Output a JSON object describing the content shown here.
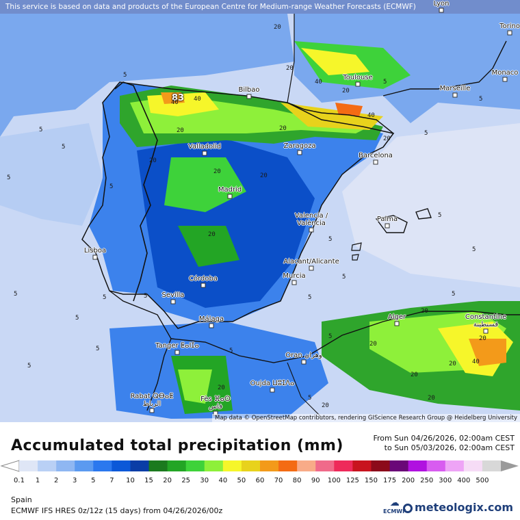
{
  "map": {
    "notice": "This service is based on data and products of the European Centre for Medium-range Weather Forecasts (ECMWF)",
    "attribution": "Map data © OpenStreetMap contributors, rendering GIScience Research Group @ Heidelberg University",
    "max_value": "83",
    "cities": [
      {
        "name": "Lyon",
        "key": "lyon"
      },
      {
        "name": "Torino",
        "key": "torino"
      },
      {
        "name": "Monaco",
        "key": "monaco"
      },
      {
        "name": "Marseille",
        "key": "marseille"
      },
      {
        "name": "Toulouse",
        "key": "toulouse"
      },
      {
        "name": "Bilbao",
        "key": "bilbao"
      },
      {
        "name": "Valladolid",
        "key": "valladolid"
      },
      {
        "name": "Zaragoza",
        "key": "zaragoza"
      },
      {
        "name": "Barcelona",
        "key": "barcelona"
      },
      {
        "name": "Madrid",
        "key": "madrid"
      },
      {
        "name": "Valencia /\nValència",
        "key": "valencia"
      },
      {
        "name": "Palma",
        "key": "palma"
      },
      {
        "name": "Lisboa",
        "key": "lisboa"
      },
      {
        "name": "Alacant/Alicante",
        "key": "alicante"
      },
      {
        "name": "Murcia",
        "key": "murcia"
      },
      {
        "name": "Córdoba",
        "key": "cordoba"
      },
      {
        "name": "Sevilla",
        "key": "sevilla"
      },
      {
        "name": "Málaga",
        "key": "malaga"
      },
      {
        "name": "Alger",
        "key": "alger"
      },
      {
        "name": "Constantine\nقسنطينة",
        "key": "constantine"
      },
      {
        "name": "Tanger ⵟⴰⵏⵊⴰ",
        "key": "tanger"
      },
      {
        "name": "Oran وهران",
        "key": "oran"
      },
      {
        "name": "Oujda ⵡⵓⵊⴷⴰ",
        "key": "oujda"
      },
      {
        "name": "Rabat ⵕⴱⴰⵟ\nالرباط",
        "key": "rabat"
      },
      {
        "name": "Fès ⴼⴰⵙ\nفاس",
        "key": "fes"
      }
    ],
    "contour_labels": [
      "5",
      "5",
      "5",
      "5",
      "5",
      "5",
      "5",
      "5",
      "5",
      "5",
      "5",
      "5",
      "5",
      "5",
      "5",
      "5",
      "5",
      "5",
      "20",
      "20",
      "20",
      "20",
      "20",
      "20",
      "20",
      "20",
      "20",
      "20",
      "20",
      "20",
      "20",
      "20",
      "20",
      "40",
      "40",
      "40",
      "40",
      "40",
      "20",
      "20",
      "20",
      "5",
      "5",
      "5",
      "5",
      "5"
    ]
  },
  "legend": {
    "title": "Accumulated total precipitation (mm)",
    "period_from": "From Sun 04/26/2026, 02:00am CEST",
    "period_to": "to Sun 05/03/2026, 02:00am CEST",
    "ticks": [
      "0.1",
      "1",
      "2",
      "3",
      "5",
      "7",
      "10",
      "15",
      "20",
      "25",
      "30",
      "40",
      "50",
      "60",
      "70",
      "80",
      "90",
      "100",
      "125",
      "150",
      "175",
      "200",
      "250",
      "300",
      "400",
      "500"
    ],
    "colors": [
      "#dfe6f6",
      "#b9d0f5",
      "#8fb7f2",
      "#5b9af0",
      "#2b78ee",
      "#0b58d8",
      "#0a3da6",
      "#1b7a1e",
      "#23a525",
      "#3ed23a",
      "#8ef03a",
      "#f6f62a",
      "#e8d21c",
      "#f39a1a",
      "#f46b14",
      "#f8ab88",
      "#f06a8a",
      "#ee2a5a",
      "#c8141e",
      "#8c0b1a",
      "#6a0878",
      "#b011e0",
      "#d85cf0",
      "#eea4f6",
      "#f6dcf6",
      "#d8d8d8"
    ],
    "region": "Spain",
    "model": "ECMWF IFS HRES 0z/12z (15 days) from 04/26/2026/00z",
    "brand": "meteologix.com",
    "ecmwf_logo": "ECMWF"
  }
}
